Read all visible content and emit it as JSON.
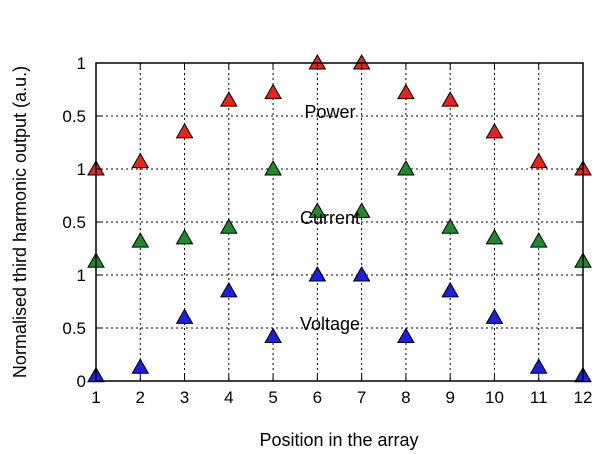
{
  "chart_data": {
    "type": "scatter",
    "xlabel": "Position in the array",
    "ylabel": "Normalised third harmonic output (a.u.)",
    "x": [
      1,
      2,
      3,
      4,
      5,
      6,
      7,
      8,
      9,
      10,
      11,
      12
    ],
    "xlim": [
      1,
      12
    ],
    "panel_ylim": [
      0,
      1
    ],
    "panel_yticks": [
      "0",
      "0.5",
      "1"
    ],
    "grid": true,
    "marker": "triangle",
    "series": [
      {
        "name": "Power",
        "color": "#e8231c",
        "values": [
          0.0,
          0.07,
          0.35,
          0.65,
          0.72,
          1.0,
          1.0,
          0.72,
          0.65,
          0.35,
          0.07,
          0.0
        ]
      },
      {
        "name": "Current",
        "color": "#1f8a2a",
        "values": [
          0.13,
          0.32,
          0.35,
          0.45,
          1.0,
          0.6,
          0.6,
          1.0,
          0.45,
          0.35,
          0.32,
          0.13
        ]
      },
      {
        "name": "Voltage",
        "color": "#1a1fe0",
        "values": [
          0.05,
          0.13,
          0.6,
          0.85,
          0.42,
          1.0,
          1.0,
          0.42,
          0.85,
          0.6,
          0.13,
          0.05
        ]
      }
    ]
  }
}
